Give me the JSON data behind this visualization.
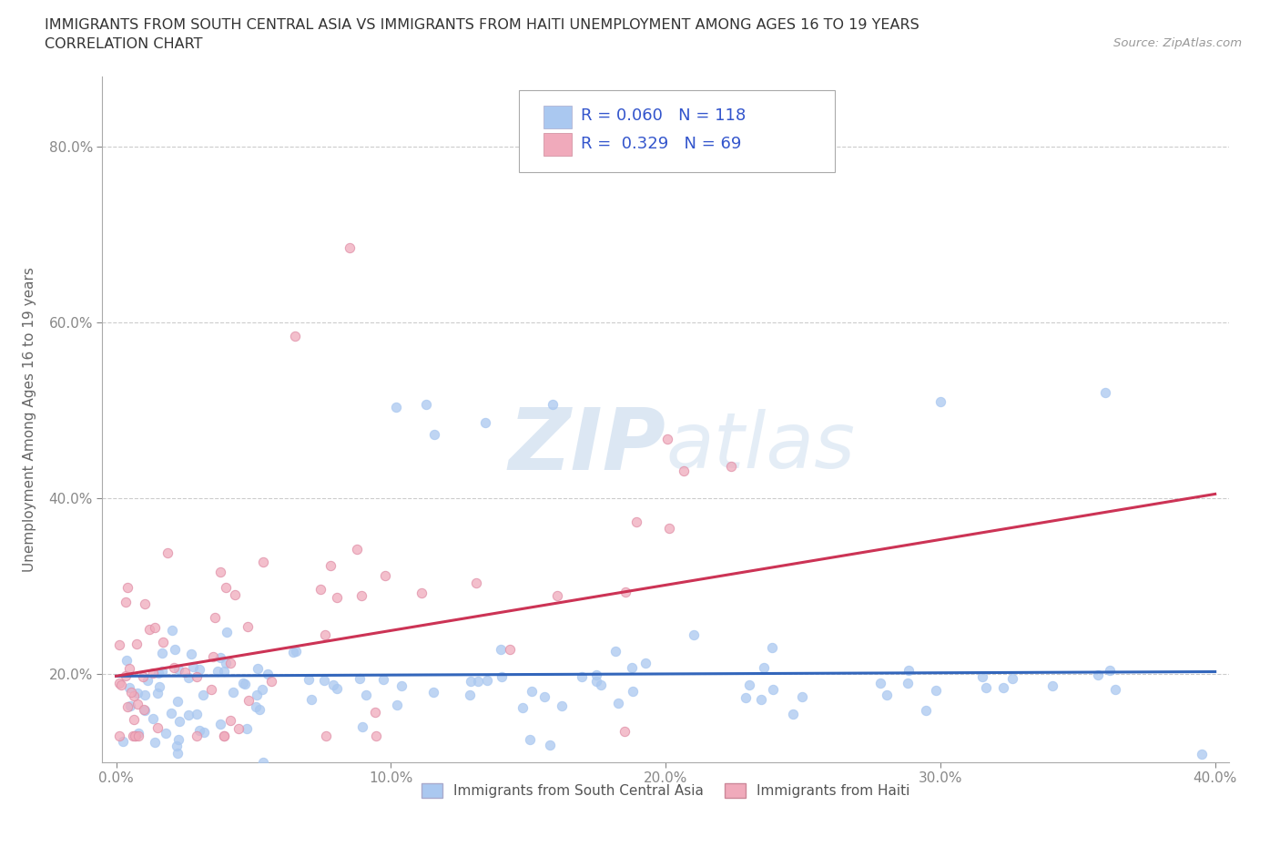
{
  "title_line1": "IMMIGRANTS FROM SOUTH CENTRAL ASIA VS IMMIGRANTS FROM HAITI UNEMPLOYMENT AMONG AGES 16 TO 19 YEARS",
  "title_line2": "CORRELATION CHART",
  "source_text": "Source: ZipAtlas.com",
  "ylabel": "Unemployment Among Ages 16 to 19 years",
  "xlim": [
    -0.005,
    0.405
  ],
  "ylim": [
    0.1,
    0.88
  ],
  "xticks": [
    0.0,
    0.1,
    0.2,
    0.3,
    0.4
  ],
  "yticks": [
    0.2,
    0.4,
    0.6,
    0.8
  ],
  "xtick_labels": [
    "0.0%",
    "10.0%",
    "20.0%",
    "30.0%",
    "40.0%"
  ],
  "ytick_labels": [
    "20.0%",
    "40.0%",
    "60.0%",
    "80.0%"
  ],
  "blue_color": "#aac8f0",
  "pink_color": "#f0aabb",
  "blue_line_color": "#3366bb",
  "pink_line_color": "#cc3355",
  "legend_text_color": "#3355cc",
  "R_blue": 0.06,
  "N_blue": 118,
  "R_pink": 0.329,
  "N_pink": 69,
  "legend_label_blue": "Immigrants from South Central Asia",
  "legend_label_pink": "Immigrants from Haiti",
  "watermark": "ZIPatlas",
  "background_color": "#ffffff",
  "grid_color": "#cccccc",
  "blue_trend_start_y": 0.198,
  "blue_trend_end_y": 0.203,
  "pink_trend_start_y": 0.198,
  "pink_trend_end_y": 0.405
}
